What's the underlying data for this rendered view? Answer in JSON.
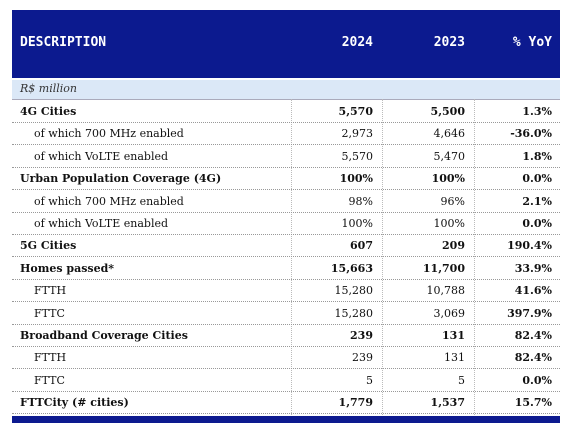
{
  "table": {
    "header": [
      "DESCRIPTION",
      "2024",
      "2023",
      "% YoY"
    ],
    "unit": "R$ million",
    "rows": [
      [
        "4G Cities",
        "5,570",
        "5,500",
        "1.3%"
      ],
      [
        "of which 700 MHz enabled",
        "2,973",
        "4,646",
        "-36.0%"
      ],
      [
        "of which VoLTE enabled",
        "5,570",
        "5,470",
        "1.8%"
      ],
      [
        "Urban Population Coverage (4G)",
        "100%",
        "100%",
        "0.0%"
      ],
      [
        "of which 700 MHz enabled",
        "98%",
        "96%",
        "2.1%"
      ],
      [
        "of which VoLTE enabled",
        "100%",
        "100%",
        "0.0%"
      ],
      [
        "5G Cities",
        "607",
        "209",
        "190.4%"
      ],
      [
        "Homes passed*",
        "15,663",
        "11,700",
        "33.9%"
      ],
      [
        "FTTH",
        "15,280",
        "10,788",
        "41.6%"
      ],
      [
        "FTTC",
        "15,280",
        "3,069",
        "397.9%"
      ],
      [
        "Broadband Coverage Cities",
        "239",
        "131",
        "82.4%"
      ],
      [
        "FTTH",
        "239",
        "131",
        "82.4%"
      ],
      [
        "FTTC",
        "5",
        "5",
        "0.0%"
      ],
      [
        "FTTCity (# cities)",
        "1,779",
        "1,537",
        "15.7%"
      ]
    ]
  }
}
